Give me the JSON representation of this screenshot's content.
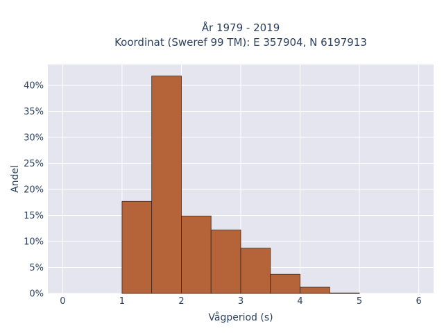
{
  "chart_data": {
    "type": "bar",
    "title_line1": "År 1979 - 2019",
    "title_line2": "Koordinat (Sweref 99 TM): E 357904, N 6197913",
    "xlabel": "Vågperiod (s)",
    "ylabel": "Andel",
    "xlim": [
      -0.25,
      6.25
    ],
    "ylim": [
      0,
      0.44
    ],
    "x_ticks": [
      0,
      1,
      2,
      3,
      4,
      5,
      6
    ],
    "y_ticks": [
      0,
      0.05,
      0.1,
      0.15,
      0.2,
      0.25,
      0.3,
      0.35,
      0.4
    ],
    "y_tick_labels": [
      "0%",
      "5%",
      "10%",
      "15%",
      "20%",
      "25%",
      "30%",
      "35%",
      "40%"
    ],
    "bin_width": 0.5,
    "bins": [
      {
        "start": 1.0,
        "end": 1.5,
        "value": 0.177
      },
      {
        "start": 1.5,
        "end": 2.0,
        "value": 0.418
      },
      {
        "start": 2.0,
        "end": 2.5,
        "value": 0.149
      },
      {
        "start": 2.5,
        "end": 3.0,
        "value": 0.122
      },
      {
        "start": 3.0,
        "end": 3.5,
        "value": 0.087
      },
      {
        "start": 3.5,
        "end": 4.0,
        "value": 0.037
      },
      {
        "start": 4.0,
        "end": 4.5,
        "value": 0.012
      },
      {
        "start": 4.5,
        "end": 5.0,
        "value": 0.001
      }
    ],
    "bar_color": "#b5643a",
    "bar_edge_color": "#3b2314",
    "plot_bg": "#e5e5f0",
    "grid": true
  }
}
